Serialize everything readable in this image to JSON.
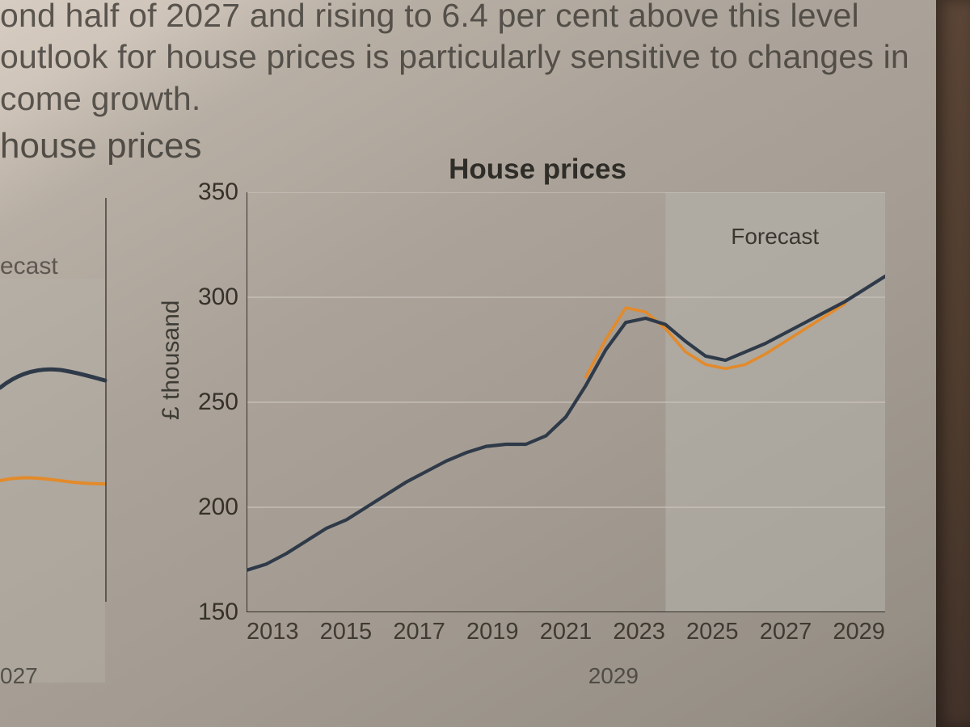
{
  "page_text": {
    "line1_partial": "ond half of 2027 and rising to 6.4 per cent above this level",
    "line2_partial": "outlook for house prices is particularly sensitive to changes in",
    "line3_partial": "come growth.",
    "section_heading_partial": "house prices"
  },
  "left_chart_fragment": {
    "label_partial": "ecast",
    "x_tick_labels": [
      "027",
      "2029"
    ],
    "dark_line_color": "#2f3a49",
    "orange_line_color": "#e38a2b"
  },
  "main_chart": {
    "type": "line",
    "title": "House prices",
    "ylabel": "£ thousand",
    "y_ticks": [
      150,
      200,
      250,
      300,
      350
    ],
    "ylim": [
      150,
      350
    ],
    "x_ticks": [
      2013,
      2015,
      2017,
      2019,
      2021,
      2023,
      2025,
      2027,
      2029
    ],
    "xlim": [
      2013,
      2029
    ],
    "forecast_band": {
      "x_start": 2023.5,
      "x_end": 2029,
      "fill": "#b6b4ad",
      "fill_opacity": 0.55,
      "label": "Forecast"
    },
    "grid_color": "#c9c3ba",
    "axis_color": "#34312b",
    "background_color": "transparent",
    "series": [
      {
        "name": "dark",
        "color": "#2f3a49",
        "width": 4.2,
        "x": [
          2013,
          2013.5,
          2014,
          2014.5,
          2015,
          2015.5,
          2016,
          2016.5,
          2017,
          2017.5,
          2018,
          2018.5,
          2019,
          2019.5,
          2020,
          2020.5,
          2021,
          2021.5,
          2022,
          2022.5,
          2023,
          2023.5,
          2024,
          2024.5,
          2025,
          2026,
          2027,
          2028,
          2029
        ],
        "y": [
          170,
          173,
          178,
          184,
          190,
          194,
          200,
          206,
          212,
          217,
          222,
          226,
          229,
          230,
          230,
          234,
          243,
          258,
          275,
          288,
          290,
          287,
          279,
          272,
          270,
          278,
          288,
          298,
          310
        ]
      },
      {
        "name": "orange",
        "color": "#e38a2b",
        "width": 3.6,
        "x": [
          2021.5,
          2022,
          2022.5,
          2023,
          2023.5,
          2024,
          2024.5,
          2025,
          2025.5,
          2026,
          2026.5,
          2027,
          2027.5,
          2028
        ],
        "y": [
          262,
          280,
          295,
          293,
          285,
          274,
          268,
          266,
          268,
          273,
          279,
          285,
          291,
          297
        ]
      }
    ],
    "fonts": {
      "title_size_pt": 24,
      "axis_label_size_pt": 20,
      "tick_label_size_pt": 19,
      "forecast_label_size_pt": 19,
      "weight_title": "600"
    }
  }
}
